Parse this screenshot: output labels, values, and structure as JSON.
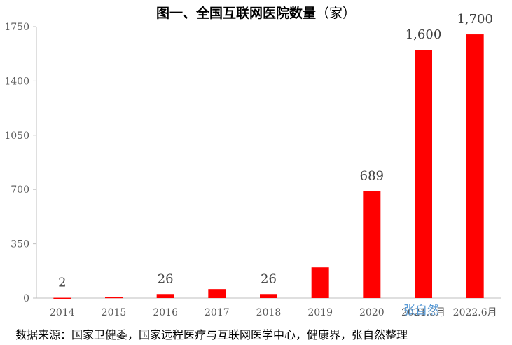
{
  "chart_data": {
    "type": "bar",
    "title": "图一、全国互联网医院数量",
    "title_unit": "（家）",
    "categories": [
      "2014",
      "2015",
      "2016",
      "2017",
      "2018",
      "2019",
      "2020",
      "2021.3月",
      "2022.6月"
    ],
    "values": [
      2,
      6,
      26,
      58,
      26,
      198,
      689,
      1600,
      1700
    ],
    "data_labels": [
      "2",
      "",
      "26",
      "",
      "26",
      "",
      "689",
      "1,600",
      "1,700"
    ],
    "yticks": [
      "0",
      "350",
      "700",
      "1050",
      "1400",
      "1750"
    ],
    "ylim": [
      0,
      1750
    ],
    "bar_color": "#ff0000",
    "grid": false,
    "xlabel": "",
    "ylabel": ""
  },
  "watermark": "张自然",
  "source_note": "数据来源：国家卫健委，国家远程医疗与互联网医学中心，健康界，张自然整理"
}
